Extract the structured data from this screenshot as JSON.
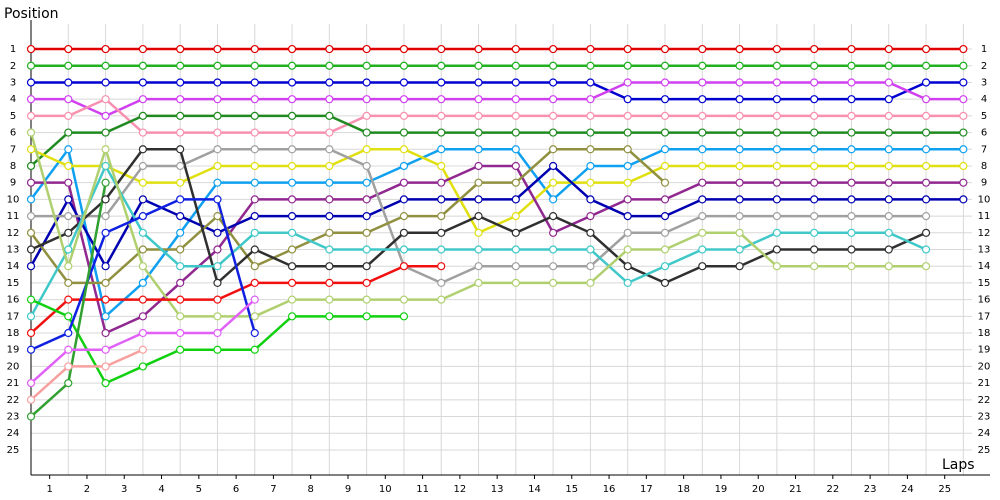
{
  "chart_data": {
    "type": "line",
    "y_label": "Position",
    "x_label": "Laps",
    "x": [
      0,
      1,
      2,
      3,
      4,
      5,
      6,
      7,
      8,
      9,
      10,
      11,
      12,
      13,
      14,
      15,
      16,
      17,
      18,
      19,
      20,
      21,
      22,
      23,
      24,
      25
    ],
    "xlim": [
      0,
      25.5
    ],
    "ylim": [
      -0.5,
      26.5
    ],
    "y_inverted": true,
    "grid": true,
    "xticks": [
      {
        "value": 0.5,
        "label": "1"
      },
      {
        "value": 1.5,
        "label": "2"
      },
      {
        "value": 2.5,
        "label": "3"
      },
      {
        "value": 3.5,
        "label": "4"
      },
      {
        "value": 4.5,
        "label": "5"
      },
      {
        "value": 5.5,
        "label": "6"
      },
      {
        "value": 6.5,
        "label": "7"
      },
      {
        "value": 7.5,
        "label": "8"
      },
      {
        "value": 8.5,
        "label": "9"
      },
      {
        "value": 9.5,
        "label": "10"
      },
      {
        "value": 10.5,
        "label": "11"
      },
      {
        "value": 11.5,
        "label": "12"
      },
      {
        "value": 12.5,
        "label": "13"
      },
      {
        "value": 13.5,
        "label": "14"
      },
      {
        "value": 14.5,
        "label": "15"
      },
      {
        "value": 15.5,
        "label": "16"
      },
      {
        "value": 16.5,
        "label": "17"
      },
      {
        "value": 17.5,
        "label": "18"
      },
      {
        "value": 18.5,
        "label": "19"
      },
      {
        "value": 19.5,
        "label": "20"
      },
      {
        "value": 20.5,
        "label": "21"
      },
      {
        "value": 21.5,
        "label": "22"
      },
      {
        "value": 22.5,
        "label": "23"
      },
      {
        "value": 23.5,
        "label": "24"
      },
      {
        "value": 24.5,
        "label": "25"
      }
    ],
    "yticks": [
      1,
      2,
      3,
      4,
      5,
      6,
      7,
      8,
      9,
      10,
      11,
      12,
      13,
      14,
      15,
      16,
      17,
      18,
      19,
      20,
      21,
      22,
      23,
      24,
      25
    ],
    "series": [
      {
        "color": "#e00000",
        "values": [
          1,
          1,
          1,
          1,
          1,
          1,
          1,
          1,
          1,
          1,
          1,
          1,
          1,
          1,
          1,
          1,
          1,
          1,
          1,
          1,
          1,
          1,
          1,
          1,
          1,
          1
        ]
      },
      {
        "color": "#20b020",
        "values": [
          2,
          2,
          2,
          2,
          2,
          2,
          2,
          2,
          2,
          2,
          2,
          2,
          2,
          2,
          2,
          2,
          2,
          2,
          2,
          2,
          2,
          2,
          2,
          2,
          2,
          2
        ]
      },
      {
        "color": "#0000d0",
        "values": [
          3,
          3,
          3,
          3,
          3,
          3,
          3,
          3,
          3,
          3,
          3,
          3,
          3,
          3,
          3,
          3,
          4,
          4,
          4,
          4,
          4,
          4,
          4,
          4,
          3,
          3
        ]
      },
      {
        "color": "#d040f0",
        "values": [
          4,
          4,
          5,
          4,
          4,
          4,
          4,
          4,
          4,
          4,
          4,
          4,
          4,
          4,
          4,
          4,
          3,
          3,
          3,
          3,
          3,
          3,
          3,
          3,
          4,
          4
        ]
      },
      {
        "color": "#f890b0",
        "values": [
          5,
          5,
          4,
          6,
          6,
          6,
          6,
          6,
          6,
          5,
          5,
          5,
          5,
          5,
          5,
          5,
          5,
          5,
          5,
          5,
          5,
          5,
          5,
          5,
          5,
          5
        ]
      },
      {
        "color": "#208a20",
        "values": [
          8,
          6,
          6,
          5,
          5,
          5,
          5,
          5,
          5,
          6,
          6,
          6,
          6,
          6,
          6,
          6,
          6,
          6,
          6,
          6,
          6,
          6,
          6,
          6,
          6,
          6
        ]
      },
      {
        "color": "#10a0f0",
        "values": [
          10,
          7,
          17,
          15,
          12,
          9,
          9,
          9,
          9,
          9,
          8,
          7,
          7,
          7,
          10,
          8,
          8,
          7,
          7,
          7,
          7,
          7,
          7,
          7,
          7,
          7
        ]
      },
      {
        "color": "#e0e010",
        "values": [
          7,
          8,
          8,
          9,
          9,
          8,
          8,
          8,
          8,
          7,
          7,
          8,
          12,
          11,
          9,
          9,
          9,
          8,
          8,
          8,
          8,
          8,
          8,
          8,
          8,
          8
        ]
      },
      {
        "color": "#902890",
        "values": [
          9,
          9,
          18,
          17,
          15,
          13,
          10,
          10,
          10,
          10,
          9,
          9,
          8,
          8,
          12,
          11,
          10,
          10,
          9,
          9,
          9,
          9,
          9,
          9,
          9,
          9
        ]
      },
      {
        "color": "#0000b0",
        "values": [
          14,
          10,
          14,
          10,
          11,
          12,
          11,
          11,
          11,
          11,
          10,
          10,
          10,
          10,
          8,
          10,
          11,
          11,
          10,
          10,
          10,
          10,
          10,
          10,
          10,
          10
        ]
      },
      {
        "color": "#a0a0a0",
        "values": [
          11,
          11,
          11,
          8,
          8,
          7,
          7,
          7,
          7,
          8,
          14,
          15,
          14,
          14,
          14,
          14,
          12,
          12,
          11,
          11,
          11,
          11,
          11,
          11,
          11,
          null
        ]
      },
      {
        "color": "#909040",
        "values": [
          12,
          15,
          15,
          13,
          13,
          11,
          14,
          13,
          12,
          12,
          11,
          11,
          9,
          9,
          7,
          7,
          7,
          9,
          null,
          null,
          null,
          null,
          null,
          null,
          null,
          null
        ]
      },
      {
        "color": "#303030",
        "values": [
          13,
          12,
          10,
          7,
          7,
          15,
          13,
          14,
          14,
          14,
          12,
          12,
          11,
          12,
          11,
          12,
          14,
          15,
          14,
          14,
          13,
          13,
          13,
          13,
          12,
          null
        ]
      },
      {
        "color": "#40c8c8",
        "values": [
          17,
          13,
          8,
          12,
          14,
          14,
          12,
          12,
          13,
          13,
          13,
          13,
          13,
          13,
          13,
          13,
          15,
          14,
          13,
          13,
          12,
          12,
          12,
          12,
          13,
          null
        ]
      },
      {
        "color": "#b0d070",
        "values": [
          6,
          14,
          7,
          14,
          17,
          17,
          17,
          16,
          16,
          16,
          16,
          16,
          15,
          15,
          15,
          15,
          13,
          13,
          12,
          12,
          14,
          14,
          14,
          14,
          14,
          null
        ]
      },
      {
        "color": "#f01010",
        "values": [
          18,
          16,
          16,
          16,
          16,
          16,
          15,
          15,
          15,
          15,
          14,
          14,
          null,
          null,
          null,
          null,
          null,
          null,
          null,
          null,
          null,
          null,
          null,
          null,
          null,
          null
        ]
      },
      {
        "color": "#10d010",
        "values": [
          16,
          17,
          21,
          20,
          19,
          19,
          19,
          17,
          17,
          17,
          17,
          null,
          null,
          null,
          null,
          null,
          null,
          null,
          null,
          null,
          null,
          null,
          null,
          null,
          null,
          null
        ]
      },
      {
        "color": "#1020e0",
        "values": [
          19,
          18,
          12,
          11,
          10,
          10,
          18,
          null,
          null,
          null,
          null,
          null,
          null,
          null,
          null,
          null,
          null,
          null,
          null,
          null,
          null,
          null,
          null,
          null,
          null,
          null
        ]
      },
      {
        "color": "#30a030",
        "values": [
          23,
          21,
          9,
          null,
          null,
          null,
          null,
          null,
          null,
          null,
          null,
          null,
          null,
          null,
          null,
          null,
          null,
          null,
          null,
          null,
          null,
          null,
          null,
          null,
          null,
          null
        ]
      },
      {
        "color": "#e060f8",
        "values": [
          21,
          19,
          19,
          18,
          18,
          18,
          16,
          null,
          null,
          null,
          null,
          null,
          null,
          null,
          null,
          null,
          null,
          null,
          null,
          null,
          null,
          null,
          null,
          null,
          null,
          null
        ]
      },
      {
        "color": "#f8a0a0",
        "values": [
          22,
          20,
          20,
          19,
          null,
          null,
          null,
          null,
          null,
          null,
          null,
          null,
          null,
          null,
          null,
          null,
          null,
          null,
          null,
          null,
          null,
          null,
          null,
          null,
          null,
          null
        ]
      }
    ]
  }
}
